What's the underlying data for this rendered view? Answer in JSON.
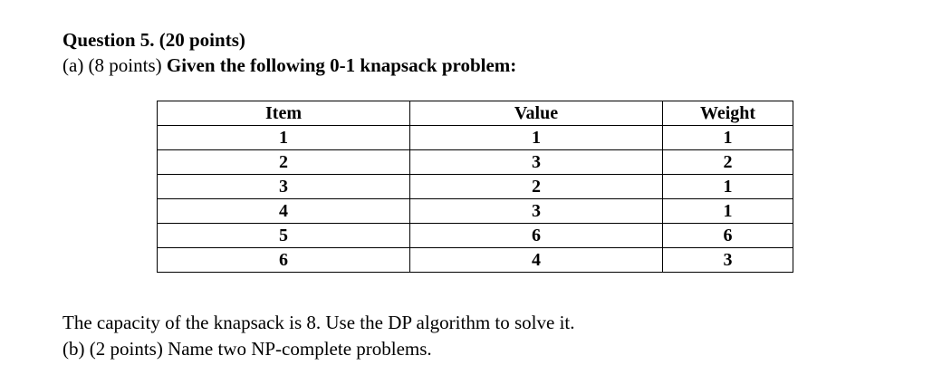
{
  "question": {
    "title": "Question 5. (20 points)",
    "part_a_points": "(a) (8 points) ",
    "part_a_text": "Given the following 0-1 knapsack problem:",
    "capacity_text": "The capacity of the knapsack is 8. Use the DP algorithm to solve it.",
    "part_b": "(b) (2 points) Name two NP-complete problems."
  },
  "table": {
    "headers": [
      "Item",
      "Value",
      "Weight"
    ],
    "rows": [
      [
        "1",
        "1",
        "1"
      ],
      [
        "2",
        "3",
        "2"
      ],
      [
        "3",
        "2",
        "1"
      ],
      [
        "4",
        "3",
        "1"
      ],
      [
        "5",
        "6",
        "6"
      ],
      [
        "6",
        "4",
        "3"
      ]
    ]
  }
}
